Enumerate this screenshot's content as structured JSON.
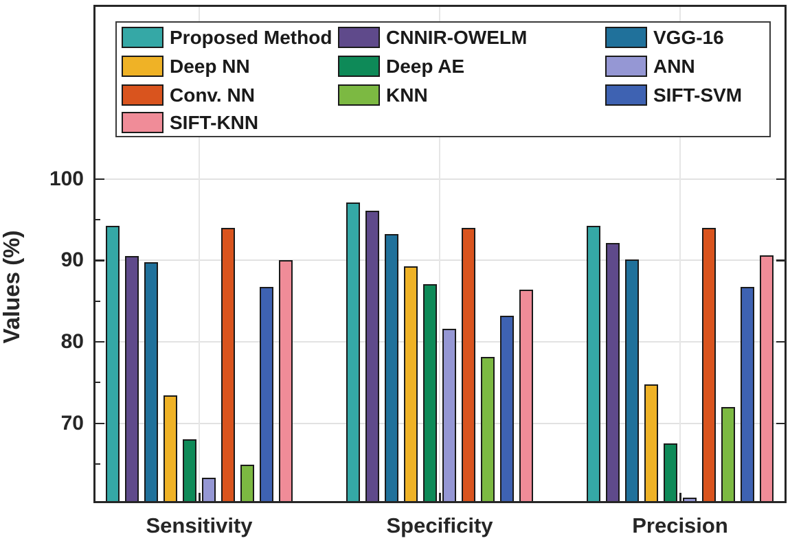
{
  "chart_data": {
    "type": "bar",
    "title": "",
    "xlabel": "",
    "ylabel": "Values (%)",
    "categories": [
      "Sensitivity",
      "Specificity",
      "Precision"
    ],
    "yticks": [
      70,
      80,
      90,
      100
    ],
    "ylim": [
      60,
      121
    ],
    "grid": "on",
    "legend_position": "top",
    "series": [
      {
        "name": "Proposed Method",
        "color": "#35a8a6",
        "values": [
          94.2,
          97.1,
          94.2
        ]
      },
      {
        "name": "CNNIR-OWELM",
        "color": "#5f4a8b",
        "values": [
          90.5,
          96.1,
          92.1
        ]
      },
      {
        "name": "VGG-16",
        "color": "#20719b",
        "values": [
          89.8,
          93.2,
          90.1
        ]
      },
      {
        "name": "Deep NN",
        "color": "#efb226",
        "values": [
          73.4,
          89.3,
          74.8
        ]
      },
      {
        "name": "Deep AE",
        "color": "#0e8a58",
        "values": [
          68.0,
          87.1,
          67.5
        ]
      },
      {
        "name": "ANN",
        "color": "#9597d4",
        "values": [
          63.3,
          81.6,
          60.9
        ]
      },
      {
        "name": "Conv. NN",
        "color": "#d9541e",
        "values": [
          94.0,
          94.0,
          94.0
        ]
      },
      {
        "name": "KNN",
        "color": "#7cb942",
        "values": [
          64.9,
          78.1,
          72.0
        ]
      },
      {
        "name": "SIFT-SVM",
        "color": "#3e62b2",
        "values": [
          86.7,
          83.2,
          86.7
        ]
      },
      {
        "name": "SIFT-KNN",
        "color": "#f08c98",
        "values": [
          90.0,
          86.4,
          90.6
        ]
      }
    ],
    "legend_columns": [
      [
        "Proposed Method",
        "Deep NN",
        "Conv. NN",
        "SIFT-KNN"
      ],
      [
        "CNNIR-OWELM",
        "Deep AE",
        "KNN"
      ],
      [
        "VGG-16",
        "ANN",
        "SIFT-SVM"
      ]
    ]
  }
}
